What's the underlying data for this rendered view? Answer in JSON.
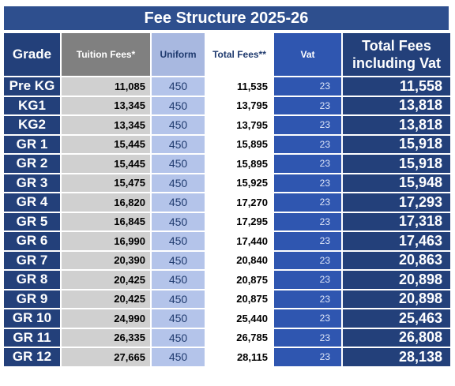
{
  "title": "Fee Structure 2025-26",
  "headers": {
    "grade": "Grade",
    "tuition": "Tuition Fees*",
    "uniform": "Uniform",
    "total": "Total Fees**",
    "vat": "Vat",
    "total_vat": "Total Fees including Vat"
  },
  "rows": [
    {
      "grade": "Pre KG",
      "tuition": "11,085",
      "uniform": "450",
      "total": "11,535",
      "vat": "23",
      "total_vat": "11,558"
    },
    {
      "grade": "KG1",
      "tuition": "13,345",
      "uniform": "450",
      "total": "13,795",
      "vat": "23",
      "total_vat": "13,818"
    },
    {
      "grade": "KG2",
      "tuition": "13,345",
      "uniform": "450",
      "total": "13,795",
      "vat": "23",
      "total_vat": "13,818"
    },
    {
      "grade": "GR 1",
      "tuition": "15,445",
      "uniform": "450",
      "total": "15,895",
      "vat": "23",
      "total_vat": "15,918"
    },
    {
      "grade": "GR 2",
      "tuition": "15,445",
      "uniform": "450",
      "total": "15,895",
      "vat": "23",
      "total_vat": "15,918"
    },
    {
      "grade": "GR 3",
      "tuition": "15,475",
      "uniform": "450",
      "total": "15,925",
      "vat": "23",
      "total_vat": "15,948"
    },
    {
      "grade": "GR 4",
      "tuition": "16,820",
      "uniform": "450",
      "total": "17,270",
      "vat": "23",
      "total_vat": "17,293"
    },
    {
      "grade": "GR 5",
      "tuition": "16,845",
      "uniform": "450",
      "total": "17,295",
      "vat": "23",
      "total_vat": "17,318"
    },
    {
      "grade": "GR 6",
      "tuition": "16,990",
      "uniform": "450",
      "total": "17,440",
      "vat": "23",
      "total_vat": "17,463"
    },
    {
      "grade": "GR 7",
      "tuition": "20,390",
      "uniform": "450",
      "total": "20,840",
      "vat": "23",
      "total_vat": "20,863"
    },
    {
      "grade": "GR 8",
      "tuition": "20,425",
      "uniform": "450",
      "total": "20,875",
      "vat": "23",
      "total_vat": "20,898"
    },
    {
      "grade": "GR 9",
      "tuition": "20,425",
      "uniform": "450",
      "total": "20,875",
      "vat": "23",
      "total_vat": "20,898"
    },
    {
      "grade": "GR 10",
      "tuition": "24,990",
      "uniform": "450",
      "total": "25,440",
      "vat": "23",
      "total_vat": "25,463"
    },
    {
      "grade": "GR 11",
      "tuition": "26,335",
      "uniform": "450",
      "total": "26,785",
      "vat": "23",
      "total_vat": "26,808"
    },
    {
      "grade": "GR 12",
      "tuition": "27,665",
      "uniform": "450",
      "total": "28,115",
      "vat": "23",
      "total_vat": "28,138"
    }
  ]
}
